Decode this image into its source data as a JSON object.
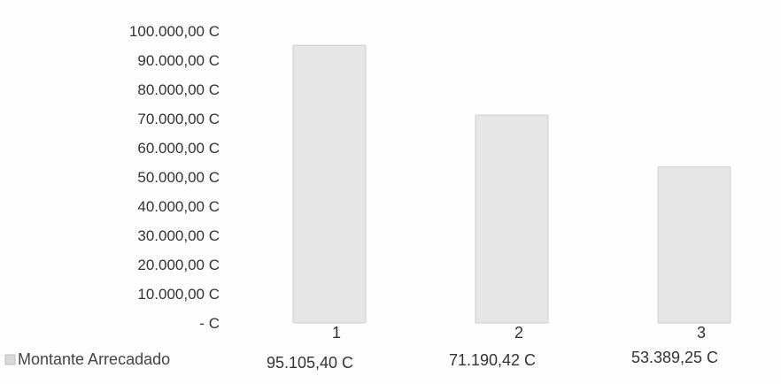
{
  "chart_data": {
    "type": "bar",
    "categories": [
      "1",
      "2",
      "3"
    ],
    "series": [
      {
        "name": "Montante Arrecadado",
        "values": [
          95105.4,
          71190.42,
          53389.25
        ],
        "value_labels": [
          "95.105,40 C",
          "71.190,42 C",
          "53.389,25 C"
        ]
      }
    ],
    "y_ticks": [
      0,
      10000,
      20000,
      30000,
      40000,
      50000,
      60000,
      70000,
      80000,
      90000,
      100000
    ],
    "y_tick_labels": [
      "- C",
      "10.000,00 C",
      "20.000,00 C",
      "30.000,00 C",
      "40.000,00 C",
      "50.000,00 C",
      "60.000,00 C",
      "70.000,00 C",
      "80.000,00 C",
      "90.000,00 C",
      "100.000,00 C"
    ],
    "ylim": [
      0,
      100000
    ],
    "grid": false,
    "legend": "bottom-left",
    "data_table": true,
    "colors": {
      "bar_fill": "#e6e6e6",
      "bar_edge": "#cfcfcf",
      "legend_key": "#d9d9d9"
    }
  }
}
